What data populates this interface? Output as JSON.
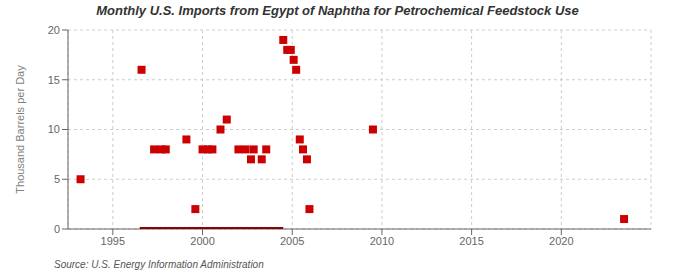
{
  "chart_data": {
    "type": "scatter",
    "title": "Monthly U.S. Imports from Egypt of Naphtha for Petrochemical Feedstock Use",
    "ylabel": "Thousand Barrels per Day",
    "annotations": [
      "Source: U.S. Energy Information Administration"
    ],
    "xlim": [
      1992.5,
      2025
    ],
    "xticks": [
      1995,
      2000,
      2005,
      2010,
      2015,
      2020
    ],
    "ylim": [
      0,
      20
    ],
    "yticks": [
      0,
      5,
      10,
      15,
      20
    ],
    "grid": true,
    "series": [
      {
        "type": "scatter",
        "marker": "square",
        "color": "#cc0000",
        "x": [
          1993.2,
          1996.6,
          1997.3,
          1997.7,
          1997.95,
          1999.1,
          1999.6,
          2000.0,
          2000.3,
          2000.55,
          2001.0,
          2001.35,
          2002.0,
          2002.4,
          2002.7,
          2002.85,
          2003.3,
          2003.55,
          2004.5,
          2004.72,
          2004.92,
          2005.08,
          2005.22,
          2005.42,
          2005.6,
          2005.82,
          2005.96,
          2009.5,
          2023.5
        ],
        "values": [
          5,
          16,
          8,
          8,
          8,
          9,
          2,
          8,
          8,
          8,
          10,
          11,
          8,
          8,
          7,
          8,
          7,
          8,
          19,
          18,
          18,
          17,
          16,
          9,
          8,
          7,
          2,
          10,
          1
        ]
      },
      {
        "type": "line",
        "line_style": "solid",
        "color": "#8b0000",
        "x": [
          1996.5,
          2004.5
        ],
        "values": [
          0.0,
          0.0
        ]
      }
    ]
  }
}
